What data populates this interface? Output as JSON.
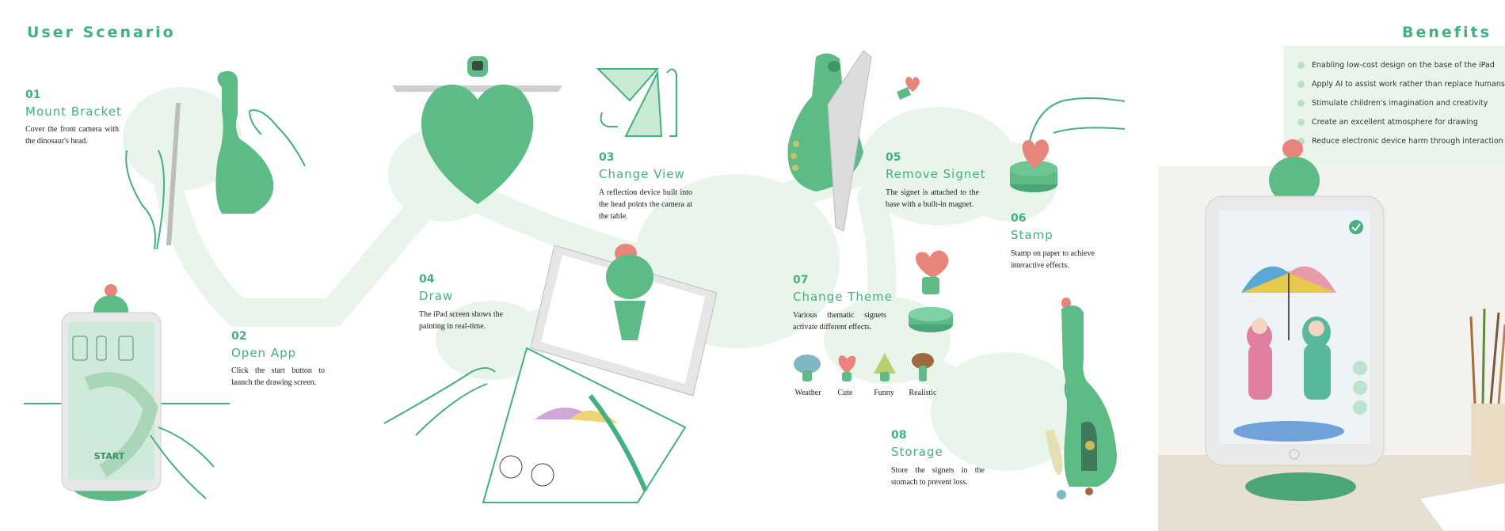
{
  "header": {
    "left_title": "User Scenario",
    "right_title": "Benefits"
  },
  "steps": [
    {
      "num": "01",
      "title": "Mount Bracket",
      "desc": "Cover the front camera with the dinosaur's head."
    },
    {
      "num": "02",
      "title": "Open App",
      "desc": "Click the start button to launch the drawing screen."
    },
    {
      "num": "03",
      "title": "Change View",
      "desc": "A reflection device built into the head points the camera at the table."
    },
    {
      "num": "04",
      "title": "Draw",
      "desc": "The iPad screen shows the painting in real-time."
    },
    {
      "num": "05",
      "title": "Remove Signet",
      "desc": "The signet is attached to the base with a built-in magnet."
    },
    {
      "num": "06",
      "title": "Stamp",
      "desc": "Stamp on paper to achieve interactive effects."
    },
    {
      "num": "07",
      "title": "Change Theme",
      "desc": "Various thematic signets activate different effects."
    },
    {
      "num": "08",
      "title": "Storage",
      "desc": "Store the signets in the stomach to prevent loss."
    }
  ],
  "signets": [
    "Weather",
    "Cute",
    "Funny",
    "Realistic"
  ],
  "benefits": [
    "Enabling low-cost design on the base of the iPad",
    "Apply AI to assist work rather than replace humans",
    "Stimulate children's imagination and creativity",
    "Create an excellent atmosphere for drawing",
    "Reduce electronic device harm through interaction"
  ],
  "app_screen": {
    "start_label": "START"
  },
  "colors": {
    "accent": "#43b07f",
    "dino": "#5dbb85",
    "heart": "#e7857a",
    "blob": "#e9f5ea"
  }
}
